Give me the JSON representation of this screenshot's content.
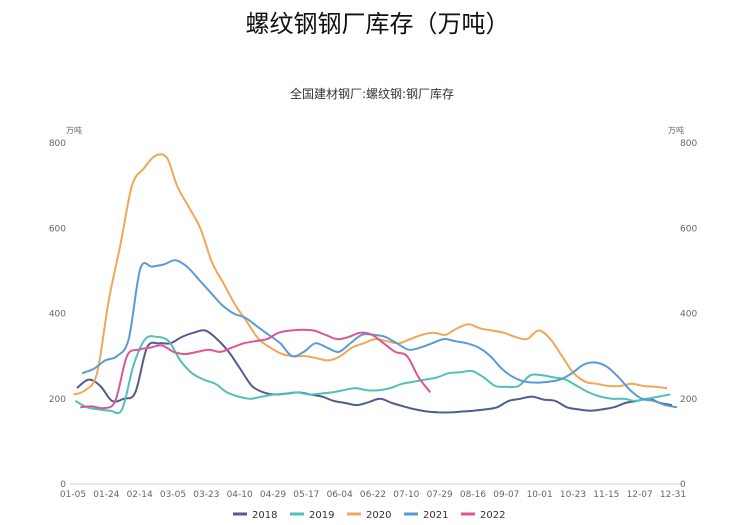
{
  "page": {
    "title": "螺纹钢钢厂库存（万吨）"
  },
  "chart_data": {
    "type": "line",
    "title": "全国建材钢厂:螺纹钢:钢厂库存",
    "unit_left": "万吨",
    "unit_right": "万吨",
    "ylim": [
      0,
      800
    ],
    "yticks": [
      0,
      200,
      400,
      600,
      800
    ],
    "grid": false,
    "legend_position": "bottom",
    "categories": [
      "01-05",
      "01-24",
      "02-14",
      "03-05",
      "03-23",
      "04-10",
      "04-29",
      "05-17",
      "06-04",
      "06-22",
      "07-10",
      "07-29",
      "08-16",
      "09-07",
      "10-01",
      "10-23",
      "11-15",
      "12-07",
      "12-31"
    ],
    "x_day_range": [
      5,
      365
    ],
    "series": [
      {
        "name": "2018",
        "color": "#515c8f",
        "x": [
          "01-05",
          "01-12",
          "01-19",
          "01-26",
          "02-02",
          "02-09",
          "02-16",
          "02-23",
          "03-02",
          "03-09",
          "03-16",
          "03-23",
          "03-30",
          "04-06",
          "04-13",
          "04-20",
          "04-27",
          "05-04",
          "05-11",
          "05-18",
          "05-25",
          "06-01",
          "06-08",
          "06-15",
          "06-22",
          "06-29",
          "07-06",
          "07-13",
          "07-20",
          "07-27",
          "08-03",
          "08-10",
          "08-17",
          "08-24",
          "08-31",
          "09-07",
          "09-14",
          "09-21",
          "09-28",
          "10-05",
          "10-12",
          "10-19",
          "10-26",
          "11-02",
          "11-09",
          "11-16",
          "11-23",
          "11-30",
          "12-07",
          "12-14",
          "12-21",
          "12-28"
        ],
        "y": [
          225,
          245,
          230,
          195,
          200,
          215,
          320,
          330,
          330,
          345,
          355,
          360,
          340,
          310,
          270,
          230,
          215,
          210,
          212,
          215,
          210,
          205,
          195,
          190,
          185,
          192,
          200,
          190,
          182,
          175,
          170,
          168,
          168,
          170,
          172,
          175,
          180,
          195,
          200,
          205,
          198,
          195,
          180,
          175,
          172,
          175,
          180,
          190,
          195,
          200,
          190,
          185
        ]
      },
      {
        "name": "2019",
        "color": "#4fc1b6",
        "x": [
          "01-04",
          "01-11",
          "01-18",
          "01-25",
          "02-01",
          "02-08",
          "02-15",
          "02-22",
          "03-01",
          "03-08",
          "03-15",
          "03-22",
          "03-29",
          "04-05",
          "04-12",
          "04-19",
          "04-26",
          "05-03",
          "05-10",
          "05-17",
          "05-24",
          "05-31",
          "06-07",
          "06-14",
          "06-21",
          "06-28",
          "07-05",
          "07-12",
          "07-19",
          "07-26",
          "08-02",
          "08-09",
          "08-16",
          "08-23",
          "08-30",
          "09-06",
          "09-13",
          "09-20",
          "09-27",
          "10-04",
          "10-11",
          "10-18",
          "10-25",
          "11-01",
          "11-08",
          "11-15",
          "11-22",
          "11-29",
          "12-06",
          "12-13",
          "12-20",
          "12-27"
        ],
        "y": [
          195,
          180,
          175,
          172,
          175,
          280,
          340,
          345,
          335,
          290,
          260,
          245,
          235,
          215,
          205,
          200,
          205,
          210,
          212,
          215,
          210,
          212,
          215,
          220,
          225,
          220,
          220,
          225,
          235,
          240,
          245,
          250,
          260,
          262,
          265,
          250,
          230,
          228,
          230,
          255,
          255,
          250,
          245,
          230,
          215,
          205,
          200,
          200,
          195,
          200,
          205,
          210
        ]
      },
      {
        "name": "2020",
        "color": "#f0a757",
        "x": [
          "01-03",
          "01-10",
          "01-17",
          "01-24",
          "01-31",
          "02-07",
          "02-14",
          "02-21",
          "02-28",
          "03-06",
          "03-13",
          "03-20",
          "03-27",
          "04-03",
          "04-10",
          "04-17",
          "04-24",
          "05-01",
          "05-08",
          "05-15",
          "05-22",
          "05-29",
          "06-05",
          "06-12",
          "06-19",
          "06-26",
          "07-03",
          "07-10",
          "07-17",
          "07-24",
          "07-31",
          "08-07",
          "08-14",
          "08-21",
          "08-28",
          "09-04",
          "09-11",
          "09-18",
          "09-25",
          "10-02",
          "10-09",
          "10-16",
          "10-23",
          "10-30",
          "11-06",
          "11-13",
          "11-20",
          "11-27",
          "12-04",
          "12-11",
          "12-18",
          "12-25"
        ],
        "y": [
          210,
          220,
          260,
          430,
          560,
          700,
          740,
          770,
          765,
          700,
          650,
          600,
          520,
          470,
          420,
          380,
          340,
          320,
          305,
          300,
          300,
          295,
          290,
          300,
          320,
          330,
          340,
          335,
          330,
          340,
          350,
          355,
          350,
          365,
          375,
          365,
          360,
          355,
          345,
          340,
          360,
          340,
          300,
          260,
          240,
          235,
          230,
          230,
          235,
          230,
          228,
          225
        ]
      },
      {
        "name": "2021",
        "color": "#5b9bd5",
        "x": [
          "01-08",
          "01-15",
          "01-22",
          "01-29",
          "02-05",
          "02-12",
          "02-19",
          "02-26",
          "03-05",
          "03-12",
          "03-19",
          "03-26",
          "04-02",
          "04-09",
          "04-16",
          "04-23",
          "04-30",
          "05-07",
          "05-14",
          "05-21",
          "05-28",
          "06-04",
          "06-11",
          "06-18",
          "06-25",
          "07-02",
          "07-09",
          "07-16",
          "07-23",
          "07-30",
          "08-06",
          "08-13",
          "08-20",
          "08-27",
          "09-03",
          "09-10",
          "09-17",
          "09-24",
          "10-01",
          "10-08",
          "10-15",
          "10-22",
          "10-29",
          "11-05",
          "11-12",
          "11-19",
          "11-26",
          "12-03",
          "12-10",
          "12-17",
          "12-24",
          "12-31"
        ],
        "y": [
          260,
          270,
          290,
          300,
          340,
          505,
          510,
          515,
          525,
          510,
          480,
          450,
          420,
          400,
          390,
          370,
          350,
          330,
          300,
          310,
          330,
          320,
          310,
          330,
          350,
          350,
          345,
          330,
          315,
          320,
          330,
          340,
          335,
          330,
          320,
          300,
          270,
          250,
          240,
          238,
          240,
          245,
          260,
          280,
          285,
          275,
          250,
          220,
          200,
          195,
          185,
          180
        ]
      },
      {
        "name": "2022",
        "color": "#d85896",
        "x": [
          "01-07",
          "01-14",
          "01-21",
          "01-28",
          "02-04",
          "02-11",
          "02-18",
          "02-25",
          "03-04",
          "03-11",
          "03-18",
          "03-25",
          "04-01",
          "04-08",
          "04-15",
          "04-22",
          "04-29",
          "05-06",
          "05-13",
          "05-20",
          "05-27",
          "06-03",
          "06-10",
          "06-17",
          "06-24",
          "07-01",
          "07-08",
          "07-15",
          "07-22",
          "07-29",
          "08-05"
        ],
        "y": [
          180,
          182,
          178,
          195,
          300,
          315,
          320,
          325,
          310,
          305,
          310,
          315,
          310,
          320,
          330,
          335,
          340,
          355,
          360,
          362,
          360,
          350,
          340,
          345,
          355,
          350,
          330,
          310,
          300,
          250,
          215
        ]
      }
    ]
  }
}
